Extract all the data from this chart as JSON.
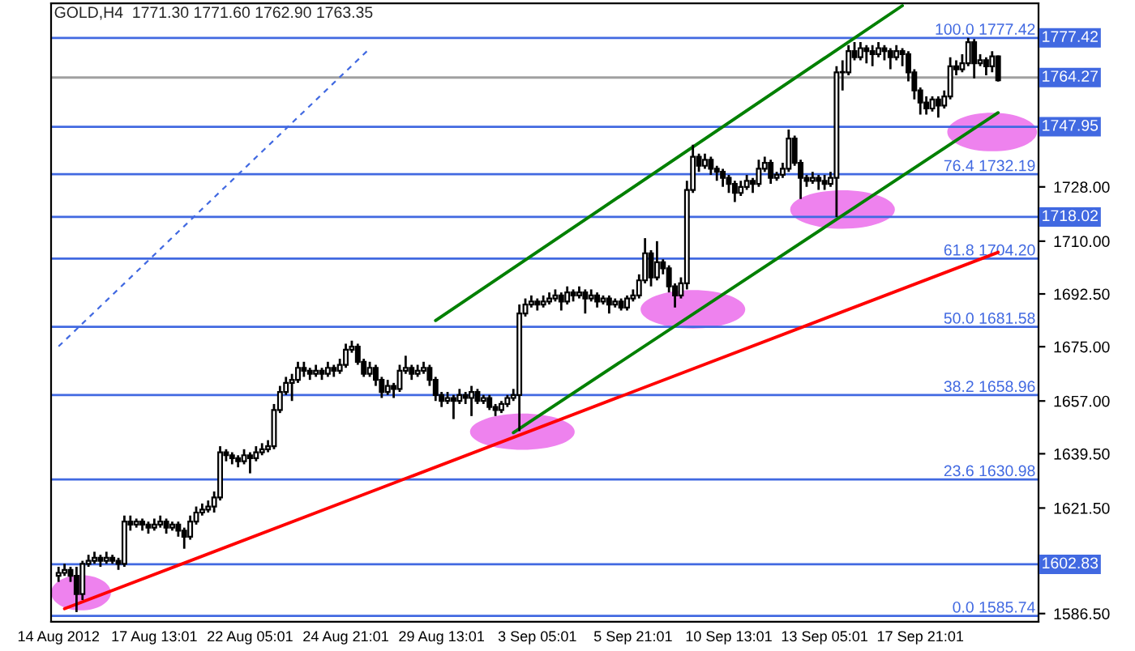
{
  "chart_data": {
    "type": "candlestick",
    "title": "GOLD,H4  1771.30 1771.60 1762.90 1763.35",
    "categories": [
      "14 Aug 2012",
      null,
      null,
      null,
      null,
      null,
      null,
      null,
      null,
      null,
      null,
      null,
      null,
      null,
      null,
      null,
      "17 Aug 13:01",
      null,
      null,
      null,
      null,
      null,
      null,
      null,
      null,
      null,
      null,
      null,
      null,
      null,
      null,
      null,
      "22 Aug 05:01",
      null,
      null,
      null,
      null,
      null,
      null,
      null,
      null,
      null,
      null,
      null,
      null,
      null,
      null,
      null,
      "24 Aug 21:01",
      null,
      null,
      null,
      null,
      null,
      null,
      null,
      null,
      null,
      null,
      null,
      null,
      null,
      null,
      null,
      "29 Aug 13:01",
      null,
      null,
      null,
      null,
      null,
      null,
      null,
      null,
      null,
      null,
      null,
      null,
      null,
      null,
      null,
      "3 Sep 05:01",
      null,
      null,
      null,
      null,
      null,
      null,
      null,
      null,
      null,
      null,
      null,
      null,
      null,
      null,
      null,
      "5 Sep 21:01",
      null,
      null,
      null,
      null,
      null,
      null,
      null,
      null,
      null,
      null,
      null,
      null,
      null,
      null,
      null,
      "10 Sep 13:01",
      null,
      null,
      null,
      null,
      null,
      null,
      null,
      null,
      null,
      null,
      null,
      null,
      null,
      null,
      null,
      "13 Sep 05:01",
      null,
      null,
      null,
      null,
      null,
      null,
      null,
      null,
      null,
      null,
      null,
      null,
      null,
      null,
      null,
      "17 Sep 21:01",
      null,
      null,
      null,
      null,
      null,
      null,
      null,
      null,
      null,
      null,
      null,
      null,
      null
    ],
    "ohlc": [
      [
        1599,
        1602,
        1597,
        1600
      ],
      [
        1600,
        1603,
        1599,
        1601
      ],
      [
        1601,
        1602,
        1597,
        1599
      ],
      [
        1599,
        1602,
        1587,
        1593
      ],
      [
        1593,
        1604,
        1591,
        1603
      ],
      [
        1603,
        1606,
        1602,
        1604
      ],
      [
        1604,
        1607,
        1603,
        1605
      ],
      [
        1605,
        1606,
        1602,
        1604
      ],
      [
        1604,
        1607,
        1603,
        1605
      ],
      [
        1605,
        1606,
        1603,
        1604
      ],
      [
        1604,
        1605,
        1601,
        1603
      ],
      [
        1603,
        1619,
        1602,
        1617
      ],
      [
        1617,
        1619,
        1614,
        1616
      ],
      [
        1616,
        1618,
        1615,
        1617
      ],
      [
        1617,
        1618,
        1614,
        1616
      ],
      [
        1616,
        1617,
        1613,
        1615
      ],
      [
        1615,
        1618,
        1614,
        1616
      ],
      [
        1616,
        1619,
        1615,
        1617
      ],
      [
        1617,
        1618,
        1613,
        1615
      ],
      [
        1615,
        1617,
        1614,
        1616
      ],
      [
        1616,
        1617,
        1612,
        1614
      ],
      [
        1614,
        1615,
        1608,
        1612
      ],
      [
        1612,
        1619,
        1611,
        1617
      ],
      [
        1617,
        1622,
        1616,
        1620
      ],
      [
        1620,
        1623,
        1619,
        1621
      ],
      [
        1621,
        1624,
        1620,
        1622
      ],
      [
        1622,
        1627,
        1620,
        1625
      ],
      [
        1625,
        1642,
        1624,
        1640
      ],
      [
        1640,
        1641,
        1637,
        1639
      ],
      [
        1639,
        1640,
        1636,
        1638
      ],
      [
        1638,
        1639,
        1635,
        1637
      ],
      [
        1637,
        1641,
        1636,
        1639
      ],
      [
        1639,
        1640,
        1633,
        1638
      ],
      [
        1638,
        1642,
        1637,
        1640
      ],
      [
        1640,
        1643,
        1639,
        1641
      ],
      [
        1641,
        1644,
        1640,
        1642
      ],
      [
        1642,
        1656,
        1641,
        1654
      ],
      [
        1654,
        1662,
        1653,
        1660
      ],
      [
        1660,
        1665,
        1659,
        1663
      ],
      [
        1663,
        1666,
        1657,
        1664
      ],
      [
        1664,
        1670,
        1663,
        1668
      ],
      [
        1668,
        1670,
        1665,
        1667
      ],
      [
        1667,
        1668,
        1664,
        1666
      ],
      [
        1666,
        1669,
        1665,
        1667
      ],
      [
        1667,
        1668,
        1664,
        1666
      ],
      [
        1666,
        1670,
        1665,
        1668
      ],
      [
        1668,
        1669,
        1665,
        1667
      ],
      [
        1667,
        1671,
        1666,
        1669
      ],
      [
        1669,
        1676,
        1668,
        1674
      ],
      [
        1674,
        1677,
        1673,
        1675
      ],
      [
        1675,
        1676,
        1669,
        1670
      ],
      [
        1670,
        1671,
        1665,
        1666
      ],
      [
        1666,
        1670,
        1665,
        1668
      ],
      [
        1668,
        1669,
        1662,
        1664
      ],
      [
        1664,
        1665,
        1658,
        1660
      ],
      [
        1660,
        1664,
        1659,
        1662
      ],
      [
        1662,
        1663,
        1658,
        1661
      ],
      [
        1661,
        1669,
        1660,
        1667
      ],
      [
        1667,
        1672,
        1666,
        1668
      ],
      [
        1668,
        1669,
        1664,
        1666
      ],
      [
        1666,
        1669,
        1665,
        1667
      ],
      [
        1667,
        1670,
        1666,
        1668
      ],
      [
        1668,
        1669,
        1662,
        1664
      ],
      [
        1664,
        1665,
        1657,
        1659
      ],
      [
        1659,
        1660,
        1655,
        1657
      ],
      [
        1657,
        1660,
        1656,
        1658
      ],
      [
        1658,
        1659,
        1651,
        1657
      ],
      [
        1657,
        1661,
        1656,
        1659
      ],
      [
        1659,
        1660,
        1656,
        1658
      ],
      [
        1658,
        1662,
        1652,
        1660
      ],
      [
        1660,
        1661,
        1656,
        1657
      ],
      [
        1657,
        1659,
        1656,
        1658
      ],
      [
        1658,
        1659,
        1654,
        1655
      ],
      [
        1655,
        1656,
        1652,
        1654
      ],
      [
        1654,
        1657,
        1653,
        1656
      ],
      [
        1656,
        1659,
        1655,
        1658
      ],
      [
        1658,
        1661,
        1657,
        1659
      ],
      [
        1659,
        1689,
        1647,
        1686
      ],
      [
        1686,
        1691,
        1685,
        1689
      ],
      [
        1689,
        1692,
        1688,
        1690
      ],
      [
        1690,
        1691,
        1687,
        1689
      ],
      [
        1689,
        1692,
        1688,
        1690
      ],
      [
        1690,
        1693,
        1689,
        1691
      ],
      [
        1691,
        1694,
        1690,
        1692
      ],
      [
        1692,
        1693,
        1687,
        1690
      ],
      [
        1690,
        1695,
        1689,
        1693
      ],
      [
        1693,
        1694,
        1690,
        1692
      ],
      [
        1692,
        1695,
        1691,
        1693
      ],
      [
        1693,
        1694,
        1686,
        1691
      ],
      [
        1691,
        1694,
        1690,
        1692
      ],
      [
        1692,
        1693,
        1688,
        1690
      ],
      [
        1690,
        1692,
        1689,
        1691
      ],
      [
        1691,
        1692,
        1686,
        1689
      ],
      [
        1689,
        1691,
        1688,
        1690
      ],
      [
        1690,
        1691,
        1687,
        1688
      ],
      [
        1688,
        1692,
        1687,
        1691
      ],
      [
        1691,
        1694,
        1690,
        1692
      ],
      [
        1692,
        1699,
        1691,
        1697
      ],
      [
        1697,
        1711,
        1696,
        1706
      ],
      [
        1706,
        1707,
        1695,
        1698
      ],
      [
        1698,
        1710,
        1697,
        1703
      ],
      [
        1703,
        1704,
        1699,
        1701
      ],
      [
        1701,
        1702,
        1693,
        1695
      ],
      [
        1695,
        1696,
        1688,
        1692
      ],
      [
        1692,
        1698,
        1691,
        1696
      ],
      [
        1696,
        1730,
        1694,
        1727
      ],
      [
        1727,
        1742,
        1726,
        1738
      ],
      [
        1738,
        1739,
        1733,
        1735
      ],
      [
        1735,
        1739,
        1734,
        1737
      ],
      [
        1737,
        1738,
        1732,
        1734
      ],
      [
        1734,
        1735,
        1730,
        1733
      ],
      [
        1733,
        1734,
        1728,
        1731
      ],
      [
        1731,
        1732,
        1726,
        1729
      ],
      [
        1729,
        1730,
        1723,
        1726
      ],
      [
        1726,
        1730,
        1725,
        1728
      ],
      [
        1728,
        1732,
        1727,
        1730
      ],
      [
        1730,
        1731,
        1726,
        1729
      ],
      [
        1729,
        1737,
        1728,
        1734
      ],
      [
        1734,
        1738,
        1733,
        1736
      ],
      [
        1736,
        1737,
        1729,
        1731
      ],
      [
        1731,
        1733,
        1730,
        1732
      ],
      [
        1732,
        1736,
        1731,
        1734
      ],
      [
        1734,
        1747,
        1733,
        1744
      ],
      [
        1744,
        1745,
        1735,
        1736
      ],
      [
        1736,
        1737,
        1724,
        1731
      ],
      [
        1731,
        1732,
        1728,
        1730
      ],
      [
        1730,
        1733,
        1729,
        1731
      ],
      [
        1731,
        1732,
        1727,
        1730
      ],
      [
        1730,
        1732,
        1727,
        1729
      ],
      [
        1729,
        1733,
        1728,
        1731
      ],
      [
        1731,
        1768,
        1718,
        1766
      ],
      [
        1766,
        1770,
        1760,
        1766
      ],
      [
        1766,
        1775,
        1765,
        1773
      ],
      [
        1773,
        1776,
        1770,
        1771
      ],
      [
        1771,
        1776,
        1770,
        1774
      ],
      [
        1774,
        1775,
        1769,
        1773
      ],
      [
        1773,
        1775,
        1768,
        1772
      ],
      [
        1772,
        1776,
        1771,
        1774
      ],
      [
        1774,
        1775,
        1770,
        1773
      ],
      [
        1773,
        1774,
        1767,
        1771
      ],
      [
        1771,
        1775,
        1770,
        1773
      ],
      [
        1773,
        1774,
        1768,
        1772
      ],
      [
        1772,
        1773,
        1763,
        1766
      ],
      [
        1766,
        1767,
        1757,
        1760
      ],
      [
        1760,
        1761,
        1752,
        1756
      ],
      [
        1756,
        1758,
        1752,
        1754
      ],
      [
        1754,
        1758,
        1753,
        1757
      ],
      [
        1757,
        1758,
        1751,
        1755
      ],
      [
        1755,
        1760,
        1754,
        1758
      ],
      [
        1758,
        1771,
        1757,
        1768
      ],
      [
        1768,
        1770,
        1765,
        1767
      ],
      [
        1767,
        1772,
        1766,
        1769
      ],
      [
        1769,
        1777.42,
        1768,
        1776
      ],
      [
        1776,
        1777,
        1764,
        1769
      ],
      [
        1769,
        1772,
        1768,
        1770
      ],
      [
        1770,
        1771,
        1765,
        1768
      ],
      [
        1768,
        1773,
        1766,
        1771.3
      ],
      [
        1771.3,
        1771.6,
        1762.9,
        1763.35
      ]
    ],
    "color": "#000000",
    "series": [
      {
        "type": "line",
        "color": "#008000",
        "line_style": "solid",
        "values": [
          null,
          null,
          null,
          null,
          null,
          null,
          null,
          null,
          null,
          null,
          null,
          null,
          null,
          null,
          null,
          null,
          null,
          null,
          null,
          null,
          null,
          null,
          null,
          null,
          null,
          null,
          null,
          null,
          null,
          null,
          null,
          null,
          null,
          null,
          null,
          null,
          null,
          null,
          null,
          null,
          null,
          null,
          null,
          null,
          null,
          null,
          null,
          null,
          null,
          null,
          null,
          null,
          null,
          null,
          null,
          null,
          null,
          null,
          null,
          null,
          null,
          null,
          null,
          1683.7,
          null,
          null,
          null,
          null,
          null,
          null,
          null,
          null,
          null,
          null,
          null,
          null,
          null,
          null,
          null,
          null,
          null,
          null,
          null,
          null,
          null,
          null,
          null,
          null,
          null,
          null,
          null,
          null,
          null,
          null,
          null,
          null,
          null,
          null,
          null,
          null,
          null,
          null,
          null,
          null,
          null,
          null,
          null,
          null,
          null,
          null,
          null,
          null,
          null,
          null,
          null,
          null,
          null,
          null,
          null,
          null,
          null,
          null,
          null,
          null,
          null,
          null,
          null,
          null,
          null,
          null,
          null,
          null,
          null,
          null,
          null,
          null,
          null,
          null,
          null,
          null,
          null,
          1788.1,
          null,
          null,
          null,
          null,
          null,
          null,
          null,
          null,
          null,
          null,
          null,
          null,
          null,
          null,
          null,
          null
        ]
      },
      {
        "type": "line",
        "color": "#008000",
        "line_style": "solid",
        "values": [
          null,
          null,
          null,
          null,
          null,
          null,
          null,
          null,
          null,
          null,
          null,
          null,
          null,
          null,
          null,
          null,
          null,
          null,
          null,
          null,
          null,
          null,
          null,
          null,
          null,
          null,
          null,
          null,
          null,
          null,
          null,
          null,
          null,
          null,
          null,
          null,
          null,
          null,
          null,
          null,
          null,
          null,
          null,
          null,
          null,
          null,
          null,
          null,
          null,
          null,
          null,
          null,
          null,
          null,
          null,
          null,
          null,
          null,
          null,
          null,
          null,
          null,
          null,
          null,
          null,
          null,
          null,
          null,
          null,
          null,
          null,
          null,
          null,
          null,
          null,
          null,
          1646.5,
          null,
          null,
          null,
          null,
          null,
          null,
          null,
          null,
          null,
          null,
          null,
          null,
          null,
          null,
          null,
          null,
          null,
          null,
          null,
          null,
          null,
          null,
          null,
          null,
          null,
          null,
          null,
          null,
          null,
          null,
          null,
          null,
          null,
          null,
          null,
          null,
          null,
          null,
          null,
          null,
          null,
          null,
          null,
          null,
          null,
          null,
          null,
          null,
          null,
          null,
          null,
          null,
          null,
          null,
          null,
          null,
          null,
          null,
          null,
          null,
          null,
          null,
          null,
          null,
          null,
          null,
          null,
          null,
          null,
          null,
          null,
          null,
          null,
          null,
          null,
          null,
          null,
          null,
          null,
          null,
          1752.6
        ]
      },
      {
        "type": "line",
        "color": "#ff0000",
        "line_style": "solid",
        "values": [
          null,
          1588.1,
          null,
          null,
          null,
          null,
          null,
          null,
          null,
          null,
          null,
          null,
          null,
          null,
          null,
          null,
          null,
          null,
          null,
          null,
          null,
          null,
          null,
          null,
          null,
          null,
          null,
          null,
          null,
          null,
          null,
          null,
          null,
          null,
          null,
          null,
          null,
          null,
          null,
          null,
          null,
          null,
          null,
          null,
          null,
          null,
          null,
          null,
          null,
          null,
          null,
          null,
          null,
          null,
          null,
          null,
          null,
          null,
          null,
          null,
          null,
          null,
          null,
          null,
          null,
          null,
          null,
          null,
          null,
          null,
          null,
          null,
          null,
          null,
          null,
          null,
          null,
          null,
          null,
          null,
          null,
          null,
          null,
          null,
          null,
          null,
          null,
          null,
          null,
          null,
          null,
          null,
          null,
          null,
          null,
          null,
          null,
          null,
          null,
          null,
          null,
          null,
          null,
          null,
          null,
          null,
          null,
          null,
          null,
          null,
          null,
          null,
          null,
          null,
          null,
          null,
          null,
          null,
          null,
          null,
          null,
          null,
          null,
          null,
          null,
          null,
          null,
          null,
          null,
          null,
          null,
          null,
          null,
          null,
          null,
          null,
          null,
          null,
          null,
          null,
          null,
          null,
          null,
          null,
          null,
          null,
          null,
          null,
          null,
          null,
          null,
          null,
          null,
          null,
          null,
          null,
          null,
          1706.3
        ]
      },
      {
        "type": "line",
        "color": "#4169e1",
        "line_style": "dashed",
        "values": [
          1675.1,
          null,
          null,
          null,
          null,
          null,
          null,
          null,
          null,
          null,
          null,
          null,
          null,
          null,
          null,
          null,
          null,
          null,
          null,
          null,
          null,
          null,
          null,
          null,
          null,
          null,
          null,
          null,
          null,
          null,
          null,
          null,
          null,
          null,
          null,
          null,
          null,
          null,
          null,
          null,
          null,
          null,
          null,
          null,
          null,
          null,
          null,
          null,
          null,
          null,
          null,
          null,
          1773.9,
          null,
          null,
          null,
          null,
          null,
          null,
          null,
          null,
          null,
          null,
          null,
          null,
          null,
          null,
          null,
          null,
          null,
          null,
          null,
          null,
          null,
          null,
          null,
          null,
          null,
          null,
          null,
          null,
          null,
          null,
          null,
          null,
          null,
          null,
          null,
          null,
          null,
          null,
          null,
          null,
          null,
          null,
          null,
          null,
          null,
          null,
          null,
          null,
          null,
          null,
          null,
          null,
          null,
          null,
          null,
          null,
          null,
          null,
          null,
          null,
          null,
          null,
          null,
          null,
          null,
          null,
          null,
          null,
          null,
          null,
          null,
          null,
          null,
          null,
          null,
          null,
          null,
          null,
          null,
          null,
          null,
          null,
          null,
          null,
          null,
          null,
          null,
          null,
          null,
          null,
          null,
          null,
          null,
          null,
          null,
          null,
          null,
          null,
          null,
          null,
          null,
          null,
          null,
          null,
          null
        ]
      }
    ],
    "ylim": [
      1583.8,
      1788.9
    ],
    "yticks": [
      {
        "value": 1586.5,
        "label": "1586.50"
      },
      {
        "value": 1621.5,
        "label": "1621.50"
      },
      {
        "value": 1639.5,
        "label": "1639.50"
      },
      {
        "value": 1657,
        "label": "1657.00"
      },
      {
        "value": 1675,
        "label": "1675.00"
      },
      {
        "value": 1692.5,
        "label": "1692.50"
      },
      {
        "value": 1710,
        "label": "1710.00"
      },
      {
        "value": 1728,
        "label": "1728.00"
      }
    ],
    "ref_lines": [
      {
        "axis": "y",
        "value": 1585.74,
        "color": "#4169e1"
      },
      {
        "axis": "y",
        "value": 1630.98,
        "color": "#4169e1"
      },
      {
        "axis": "y",
        "value": 1658.96,
        "color": "#4169e1"
      },
      {
        "axis": "y",
        "value": 1681.58,
        "color": "#4169e1"
      },
      {
        "axis": "y",
        "value": 1704.2,
        "color": "#4169e1"
      },
      {
        "axis": "y",
        "value": 1732.19,
        "color": "#4169e1"
      },
      {
        "axis": "y",
        "value": 1777.42,
        "color": "#4169e1",
        "label": "1777.42"
      },
      {
        "axis": "y",
        "value": 1602.83,
        "color": "#4169e1",
        "label": "1602.83"
      },
      {
        "axis": "y",
        "value": 1718.02,
        "color": "#4169e1",
        "label": "1718.02"
      },
      {
        "axis": "y",
        "value": 1747.95,
        "color": "#4169e1",
        "label": "1747.95"
      },
      {
        "axis": "y",
        "value": 1764.27,
        "color": "#a0a0a0",
        "label": "1764.27"
      }
    ],
    "annotations": [
      {
        "text": "0.0 1585.74",
        "y": 1585.74
      },
      {
        "text": "23.6 1630.98",
        "y": 1630.98
      },
      {
        "text": "38.2 1658.96",
        "y": 1658.96
      },
      {
        "text": "50.0 1681.58",
        "y": 1681.58
      },
      {
        "text": "61.8 1704.20",
        "y": 1704.2
      },
      {
        "text": "76.4 1732.19",
        "y": 1732.19
      },
      {
        "text": "100.0 1777.42",
        "y": 1777.42
      }
    ],
    "grid": false,
    "legend": false
  }
}
